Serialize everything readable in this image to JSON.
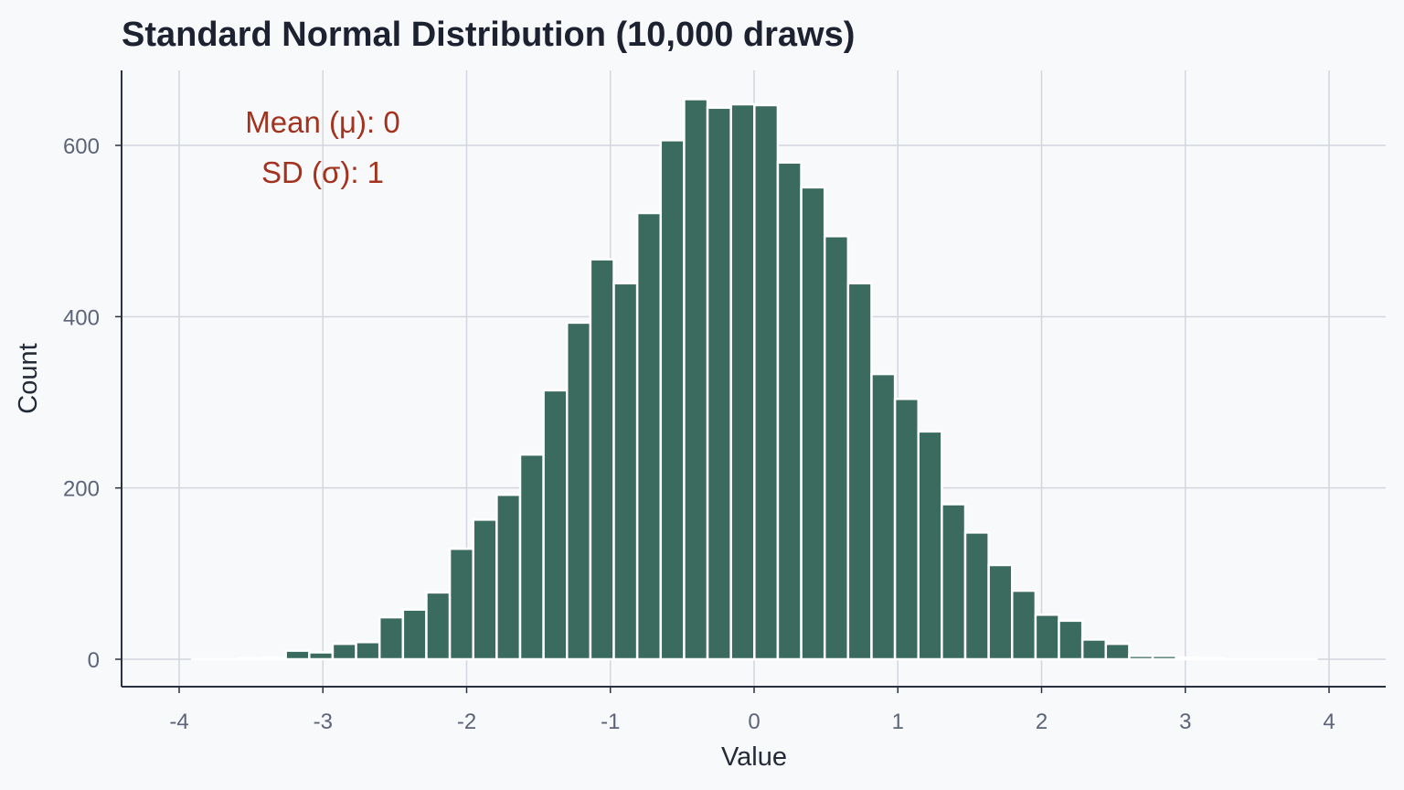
{
  "chart_data": {
    "type": "bar",
    "title": "Standard Normal Distribution (10,000 draws)",
    "xlabel": "Value",
    "ylabel": "Count",
    "xlim": [
      -4.45,
      4.4
    ],
    "ylim": [
      -32,
      680
    ],
    "xticks": [
      -4,
      -3,
      -2,
      -1,
      0,
      1,
      2,
      3,
      4
    ],
    "xtick_labels": [
      "-4",
      "-3",
      "-2",
      "-1",
      "0",
      "1",
      "2",
      "3",
      "4"
    ],
    "yticks": [
      0,
      200,
      400,
      600
    ],
    "ytick_labels": [
      "0",
      "200",
      "400",
      "600"
    ],
    "grid": true,
    "bin_start": -3.91,
    "bin_width": 0.163,
    "counts": [
      0,
      0,
      1,
      2,
      10,
      8,
      18,
      20,
      49,
      58,
      78,
      129,
      163,
      192,
      239,
      314,
      393,
      467,
      439,
      521,
      606,
      654,
      644,
      648,
      647,
      580,
      551,
      494,
      439,
      333,
      304,
      266,
      181,
      148,
      110,
      80,
      52,
      45,
      23,
      18,
      4,
      4,
      2,
      1,
      0,
      0,
      0,
      0
    ],
    "bar_color": "#3b6b5e",
    "annotations": [
      "Mean (μ): 0",
      "SD (σ): 1"
    ],
    "annotation_color": "#a3321e"
  }
}
